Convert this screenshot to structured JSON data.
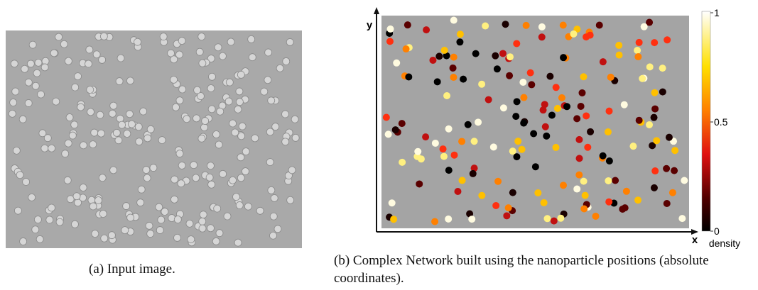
{
  "panel_a": {
    "caption": "(a) Input image."
  },
  "panel_b": {
    "caption": "(b) Complex Network built using the nanoparticle positions (absolute coordinates).",
    "x_label": "x",
    "y_label": "y",
    "colorbar": {
      "label": "density",
      "ticks": [
        1,
        0.5,
        0
      ]
    }
  }
}
